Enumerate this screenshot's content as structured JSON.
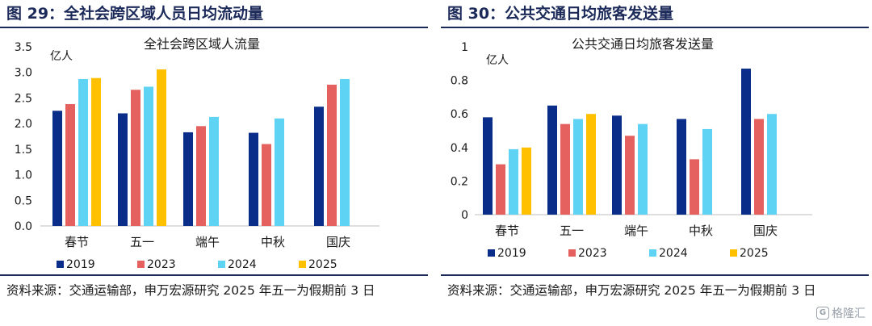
{
  "left": {
    "figure_title": "图 29：全社会跨区域人员日均流动量",
    "source_text": "资料来源：交通运输部，申万宏源研究  2025 年五一为假期前 3 日"
  },
  "right": {
    "figure_title": "图 30：公共交通日均旅客发送量",
    "source_text": "资料来源：交通运输部，申万宏源研究    2025 年五一为假期前 3 日"
  },
  "watermark": {
    "logo": "G",
    "text": "格隆汇"
  },
  "colors": {
    "2019": "#0a2d8a",
    "2023": "#e5615f",
    "2024": "#5ed3f3",
    "2025": "#ffc000"
  },
  "chart_data": [
    {
      "type": "bar",
      "title": "全社会跨区域人流量",
      "ylabel": "亿人",
      "xlabel": "",
      "ylim": [
        0,
        3.5
      ],
      "yticks": [
        "0.0",
        "0.5",
        "1.0",
        "1.5",
        "2.0",
        "2.5",
        "3.0",
        "3.5"
      ],
      "categories": [
        "春节",
        "五一",
        "端午",
        "中秋",
        "国庆"
      ],
      "series": [
        {
          "name": "2019",
          "values": [
            2.25,
            2.2,
            1.83,
            1.82,
            2.33
          ]
        },
        {
          "name": "2023",
          "values": [
            2.38,
            2.66,
            1.95,
            1.6,
            2.76
          ]
        },
        {
          "name": "2024",
          "values": [
            2.87,
            2.72,
            2.13,
            2.1,
            2.87
          ]
        },
        {
          "name": "2025",
          "values": [
            2.89,
            3.06,
            null,
            null,
            null
          ]
        }
      ],
      "grid": false,
      "legend": "bottom"
    },
    {
      "type": "bar",
      "title": "公共交通日均旅客发送量",
      "ylabel": "亿人",
      "xlabel": "",
      "ylim": [
        0,
        1
      ],
      "yticks": [
        "0",
        "0.2",
        "0.4",
        "0.6",
        "0.8",
        "1"
      ],
      "categories": [
        "春节",
        "五一",
        "端午",
        "中秋",
        "国庆"
      ],
      "series": [
        {
          "name": "2019",
          "values": [
            0.58,
            0.65,
            0.59,
            0.57,
            0.87
          ]
        },
        {
          "name": "2023",
          "values": [
            0.3,
            0.54,
            0.47,
            0.33,
            0.57
          ]
        },
        {
          "name": "2024",
          "values": [
            0.39,
            0.57,
            0.54,
            0.51,
            0.6
          ]
        },
        {
          "name": "2025",
          "values": [
            0.4,
            0.6,
            null,
            null,
            null
          ]
        }
      ],
      "grid": false,
      "legend": "bottom"
    }
  ]
}
